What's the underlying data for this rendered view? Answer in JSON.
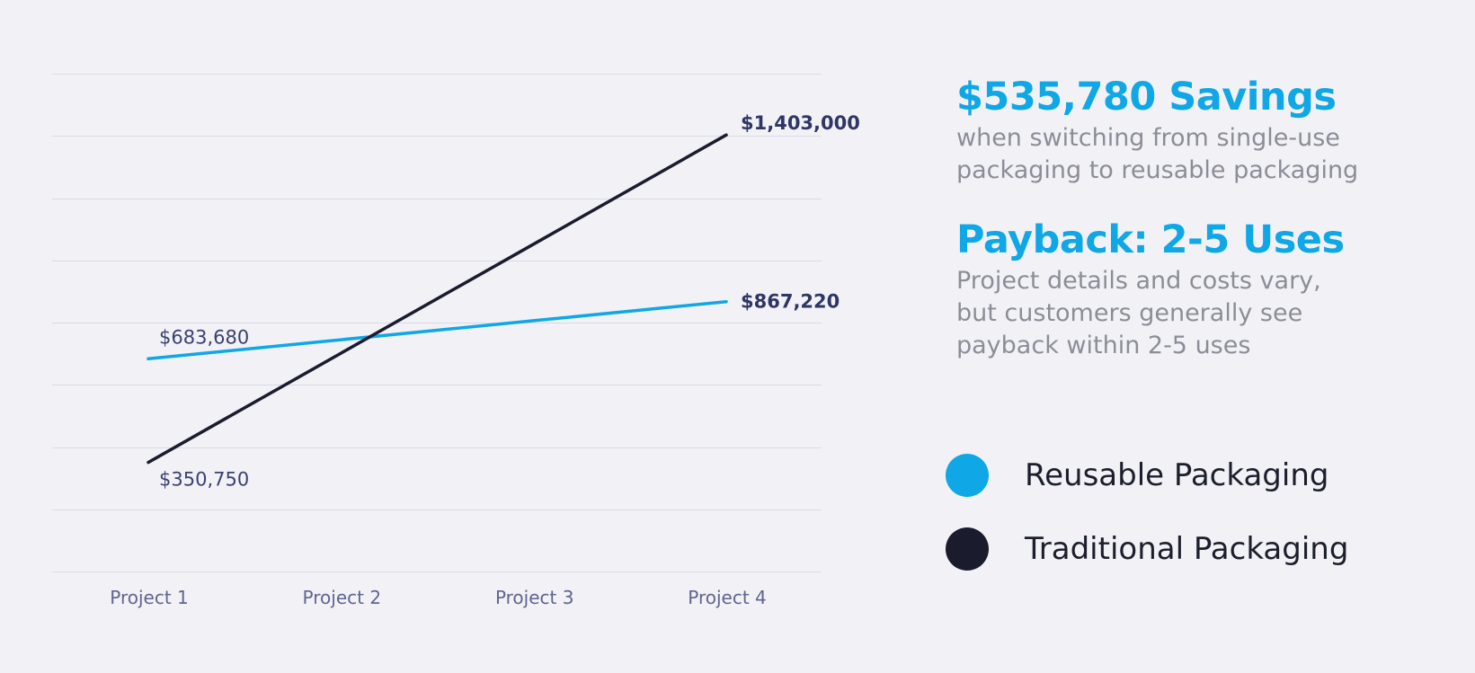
{
  "chart_data": {
    "type": "line",
    "categories": [
      "Project 1",
      "Project 2",
      "Project 3",
      "Project 4"
    ],
    "series": [
      {
        "name": "Reusable Packaging",
        "color": "#0fa7e6",
        "values": [
          683680,
          744860,
          806040,
          867220
        ],
        "labels": {
          "0": "$683,680",
          "3": "$867,220"
        }
      },
      {
        "name": "Traditional Packaging",
        "color": "#1a1c2e",
        "values": [
          350750,
          701500,
          1052250,
          1403000
        ],
        "labels": {
          "0": "$350,750",
          "3": "$1,403,000"
        }
      }
    ],
    "ylim": [
      0,
      1600000
    ],
    "grid": true,
    "legend_position": "right"
  },
  "panel": {
    "headline1": "$535,780 Savings",
    "sub1": [
      "when switching from single-use",
      "packaging to reusable packaging"
    ],
    "headline2": "Payback: 2-5 Uses",
    "sub2": [
      "Project details and costs vary,",
      "but customers generally see",
      "payback within 2-5 uses"
    ]
  },
  "legend": [
    {
      "label": "Reusable Packaging",
      "color": "#0fa7e6"
    },
    {
      "label": "Traditional Packaging",
      "color": "#1a1c2e"
    }
  ]
}
